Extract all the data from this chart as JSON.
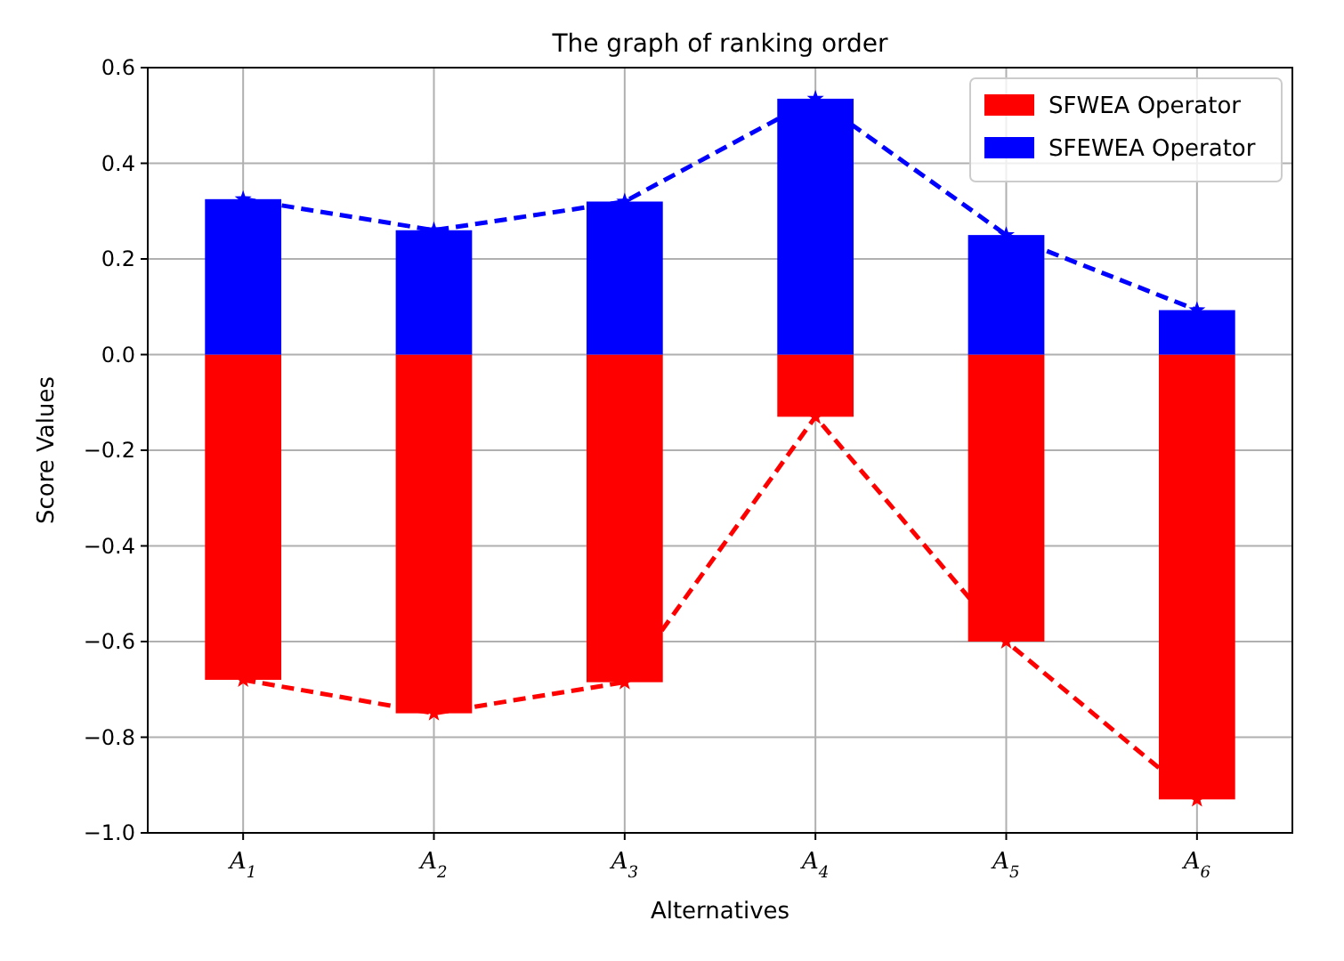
{
  "chart_data": {
    "type": "bar",
    "title": "The graph of ranking order",
    "xlabel": "Alternatives",
    "ylabel": "Score Values",
    "categories": [
      "A$_{1}$",
      "A$_{2}$",
      "A$_{3}$",
      "A$_{4}$",
      "A$_{5}$",
      "A$_{6}$"
    ],
    "stacked": true,
    "series": [
      {
        "name": "SFWEA Operator",
        "color": "#ff0000",
        "values": [
          -0.68,
          -0.75,
          -0.685,
          -0.13,
          -0.6,
          -0.93
        ]
      },
      {
        "name": "SFEWEA Operator",
        "color": "#0000ff",
        "values": [
          0.325,
          0.26,
          0.32,
          0.535,
          0.25,
          0.093
        ]
      },
      {
        "type": "line",
        "color": "#ff0000",
        "marker": "star",
        "line_style": "dashed",
        "values": [
          -0.68,
          -0.75,
          -0.685,
          -0.13,
          -0.6,
          -0.93
        ]
      },
      {
        "type": "line",
        "color": "#0000ff",
        "marker": "star",
        "line_style": "dashed",
        "values": [
          0.325,
          0.26,
          0.32,
          0.535,
          0.25,
          0.093
        ]
      }
    ],
    "ylim": [
      -1.0,
      0.6
    ],
    "yticks": [
      {
        "value": -1.0,
        "label": "−1.0"
      },
      {
        "value": -0.8,
        "label": "−0.8"
      },
      {
        "value": -0.6,
        "label": "−0.6"
      },
      {
        "value": -0.4,
        "label": "−0.4"
      },
      {
        "value": -0.2,
        "label": "−0.2"
      },
      {
        "value": 0,
        "label": "0.0"
      },
      {
        "value": 0.2,
        "label": "0.2"
      },
      {
        "value": 0.4,
        "label": "0.4"
      },
      {
        "value": 0.6,
        "label": "0.6"
      }
    ],
    "grid": true,
    "legend": "top right"
  }
}
